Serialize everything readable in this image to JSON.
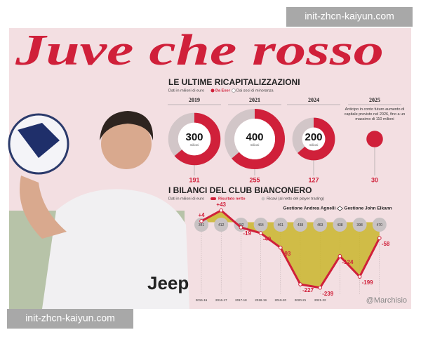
{
  "header": {
    "title": "Juve che rosso"
  },
  "recap": {
    "title": "LE ULTIME RICAPITALIZZAZIONI",
    "subtitle": "Dati in milioni di euro",
    "legend": [
      "Da Exor",
      "Dai soci di minoranza"
    ],
    "items": [
      {
        "year": "2019",
        "total": 300,
        "unit": "milioni",
        "exor": 191
      },
      {
        "year": "2021",
        "total": 400,
        "unit": "milioni",
        "exor": 255
      },
      {
        "year": "2024",
        "total": 200,
        "unit": "milioni",
        "exor": 127
      },
      {
        "year": "2025",
        "note": "Anticipo in conto futuro aumento di capitale previsto nel 2026, fino a un massimo di 110 milioni",
        "exor": 30
      }
    ]
  },
  "balances": {
    "title": "I BILANCI DEL CLUB BIANCONERO",
    "subtitle": "Dati in milioni di euro",
    "legend_net": "Risultato netto",
    "legend_revenue": "Ricavi (al netto del player trading)",
    "era_left": "Gestione Andrea Agnelli",
    "era_right": "Gestione John Elkann",
    "seasons": [
      "2015-16",
      "2016-17",
      "2017-18",
      "2018-19",
      "2019-20",
      "2020-21",
      "2021-22",
      null,
      null,
      null
    ],
    "revenue": [
      341,
      412,
      402,
      464,
      461,
      438,
      463,
      438,
      398,
      470
    ],
    "net": [
      4,
      43,
      -19,
      -40,
      -93,
      -227,
      -239,
      -124,
      -199,
      -58
    ],
    "net_labels": [
      "+4",
      "+43",
      "-19",
      "-40",
      "-93",
      "-227",
      "-239",
      "-124",
      "-199",
      "-58"
    ]
  },
  "photo_text": "Jeep",
  "watermarks": [
    "init-zhcn-kaiyun.com",
    "init-zhcn-kaiyun.com",
    "@Marchisio"
  ]
}
